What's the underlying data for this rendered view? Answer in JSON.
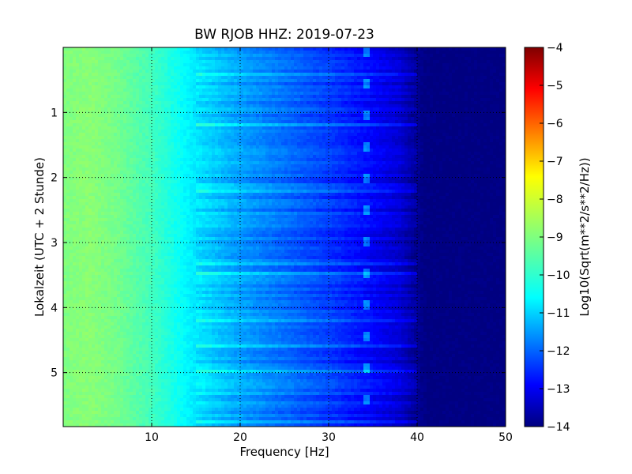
{
  "chart_data": {
    "type": "heatmap",
    "title": "BW RJOB HHZ: 2019-07-23",
    "xlabel": "Frequency [Hz]",
    "ylabel": "Lokalzeit (UTC + 2 Stunde)",
    "xlim": [
      0,
      50
    ],
    "ylim": [
      0,
      5.83
    ],
    "y_inverted": true,
    "x_ticks": [
      10,
      20,
      30,
      40,
      50
    ],
    "y_ticks": [
      1,
      2,
      3,
      4,
      5
    ],
    "grid": true,
    "colormap": "jet",
    "colorbar": {
      "label": "Log10(Sqrt(m**2/s**2/Hz))",
      "range": [
        -14,
        -4
      ],
      "ticks": [
        -4,
        -5,
        -6,
        -7,
        -8,
        -9,
        -10,
        -11,
        -12,
        -13,
        -14
      ]
    },
    "value_profile": {
      "frequency_hz": [
        0,
        3,
        6,
        10,
        15,
        20,
        25,
        30,
        35,
        38,
        40,
        41,
        50
      ],
      "log10_amplitude": [
        -9.0,
        -8.9,
        -9.1,
        -9.6,
        -10.5,
        -11.2,
        -11.7,
        -12.2,
        -12.8,
        -13.2,
        -13.8,
        -14.0,
        -14.0
      ]
    },
    "spectral_line_hz": 34.2
  },
  "colors": {
    "background": "#ffffff",
    "axes": "#000000",
    "grid": "#000000",
    "colormap_stops": [
      "#00007f",
      "#0000ff",
      "#007fff",
      "#00ffff",
      "#7fff7f",
      "#ffff00",
      "#ff7f00",
      "#ff0000",
      "#7f0000"
    ]
  }
}
